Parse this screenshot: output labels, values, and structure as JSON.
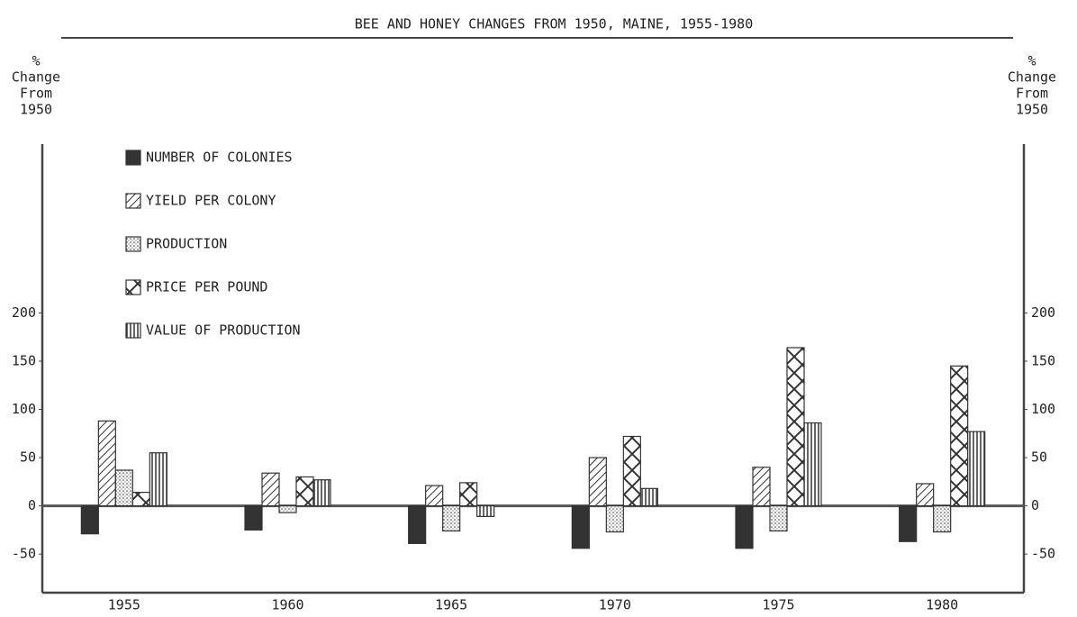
{
  "chart_data": {
    "type": "bar",
    "title": "BEE AND HONEY CHANGES FROM 1950, MAINE, 1955-1980",
    "ylabel_lines": [
      "%",
      "Change",
      "From",
      "1950"
    ],
    "y2label_lines": [
      "%",
      "Change",
      "From",
      "1950"
    ],
    "categories": [
      "1955",
      "1960",
      "1965",
      "1970",
      "1975",
      "1980"
    ],
    "series": [
      {
        "name": "NUMBER OF COLONIES",
        "color": "#333333",
        "pattern": "solid",
        "values": [
          -29,
          -25,
          -39,
          -44,
          -44,
          -37
        ]
      },
      {
        "name": "YIELD PER COLONY",
        "color": "#333333",
        "pattern": "diagonal",
        "values": [
          88,
          34,
          21,
          50,
          40,
          23
        ]
      },
      {
        "name": "PRODUCTION",
        "color": "#333333",
        "pattern": "dots",
        "values": [
          37,
          -7,
          -26,
          -27,
          -26,
          -27
        ]
      },
      {
        "name": "PRICE PER POUND",
        "color": "#333333",
        "pattern": "crosshatch",
        "values": [
          14,
          30,
          24,
          72,
          164,
          145
        ]
      },
      {
        "name": "VALUE OF PRODUCTION",
        "color": "#333333",
        "pattern": "vertical",
        "values": [
          55,
          27,
          -11,
          18,
          86,
          77
        ]
      }
    ],
    "ylim": [
      -90,
      375
    ],
    "yticks": [
      -50,
      0,
      50,
      100,
      150,
      200
    ],
    "y2lim": [
      -90,
      375
    ],
    "y2ticks": [
      -50,
      0,
      50,
      100,
      150,
      200
    ],
    "grid": false,
    "legend": "upper left"
  }
}
